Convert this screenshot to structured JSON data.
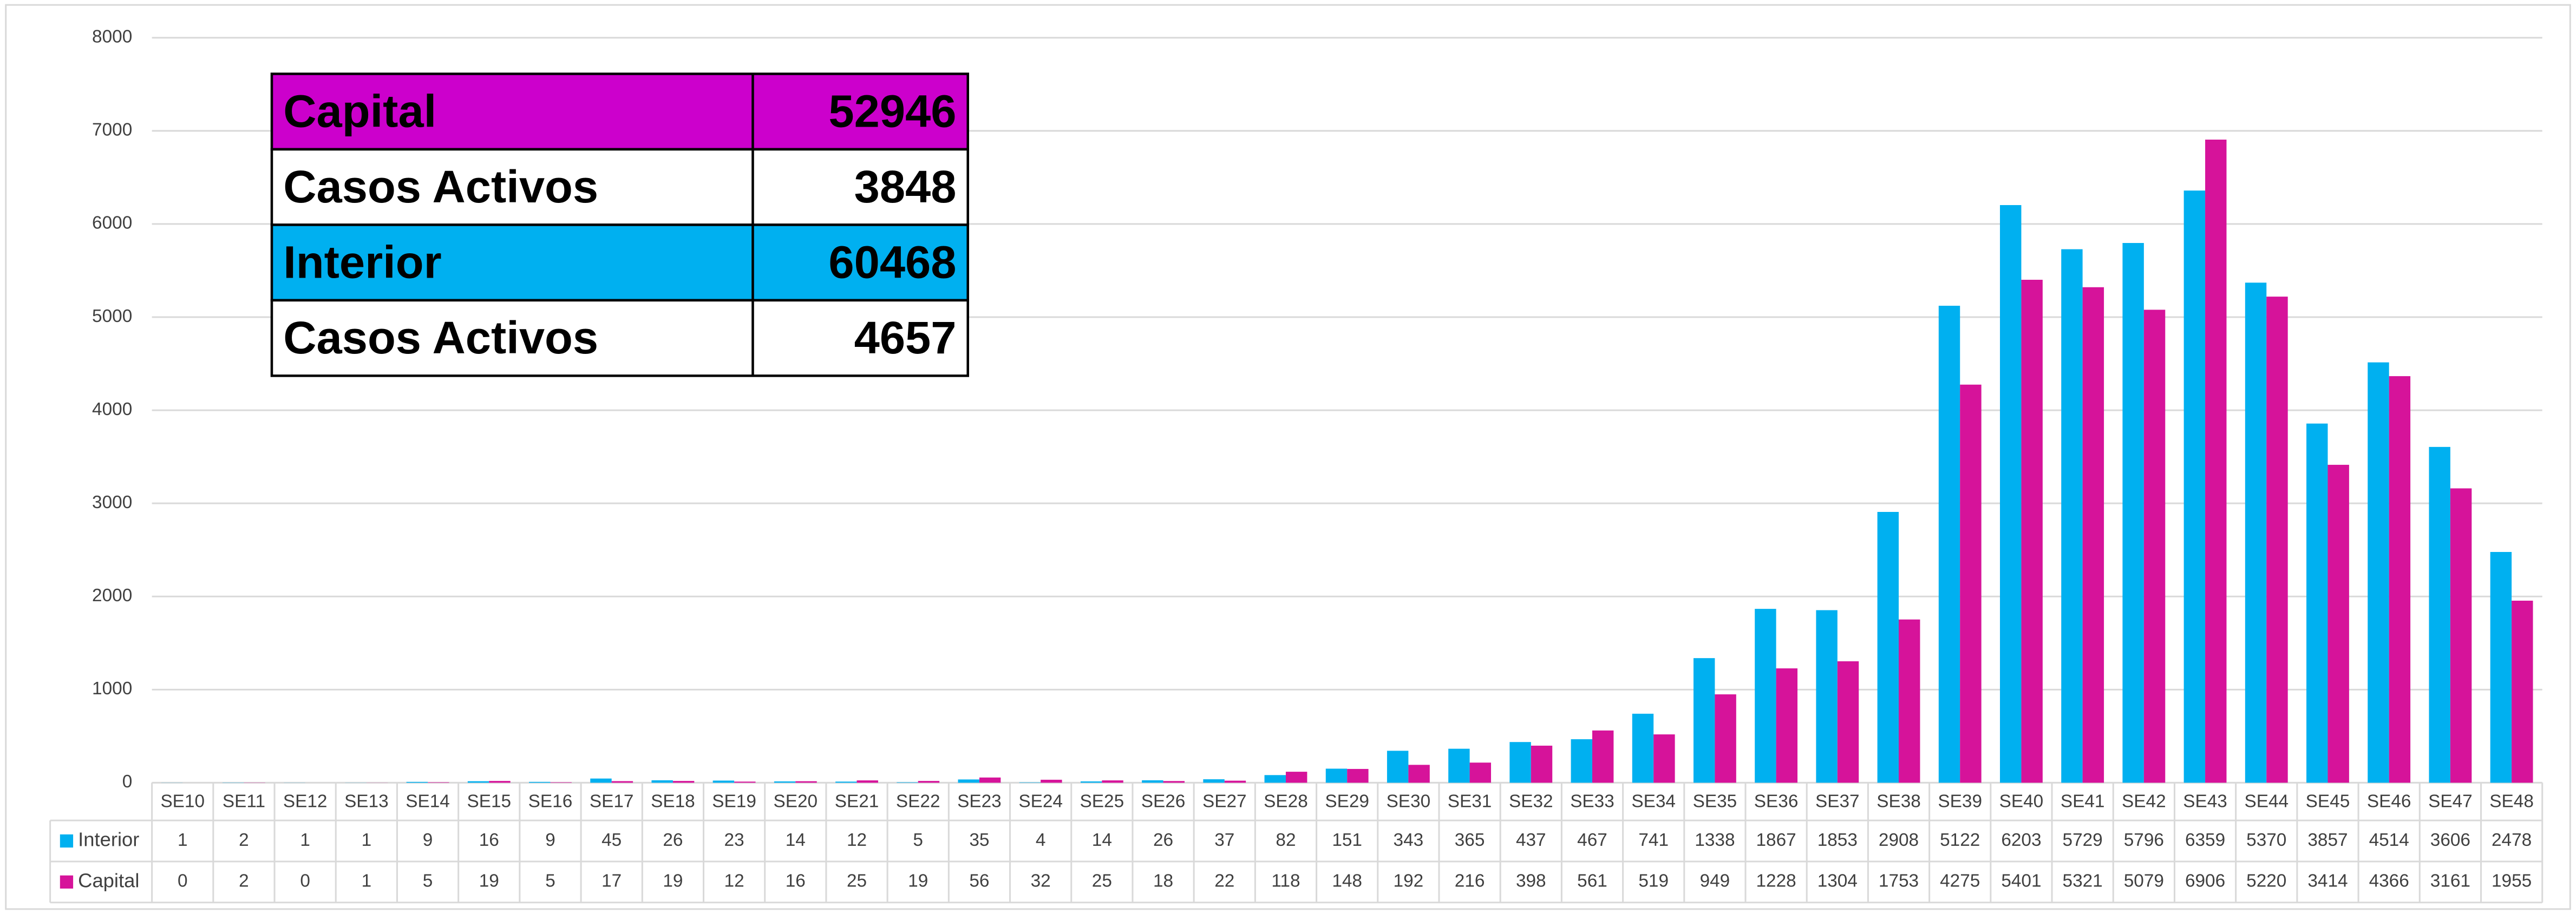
{
  "chart_data": {
    "type": "bar",
    "categories": [
      "SE10",
      "SE11",
      "SE12",
      "SE13",
      "SE14",
      "SE15",
      "SE16",
      "SE17",
      "SE18",
      "SE19",
      "SE20",
      "SE21",
      "SE22",
      "SE23",
      "SE24",
      "SE25",
      "SE26",
      "SE27",
      "SE28",
      "SE29",
      "SE30",
      "SE31",
      "SE32",
      "SE33",
      "SE34",
      "SE35",
      "SE36",
      "SE37",
      "SE38",
      "SE39",
      "SE40",
      "SE41",
      "SE42",
      "SE43",
      "SE44",
      "SE45",
      "SE46",
      "SE47",
      "SE48"
    ],
    "series": [
      {
        "name": "Interior",
        "color": "#00b0f0",
        "values": [
          1,
          2,
          1,
          1,
          9,
          16,
          9,
          45,
          26,
          23,
          14,
          12,
          5,
          35,
          4,
          14,
          26,
          37,
          82,
          151,
          343,
          365,
          437,
          467,
          741,
          1338,
          1867,
          1853,
          2908,
          5122,
          6203,
          5729,
          5796,
          6359,
          5370,
          3857,
          4514,
          3606,
          2478
        ]
      },
      {
        "name": "Capital",
        "color": "#d6139a",
        "values": [
          0,
          2,
          0,
          1,
          5,
          19,
          5,
          17,
          19,
          12,
          16,
          25,
          19,
          56,
          32,
          25,
          18,
          22,
          118,
          148,
          192,
          216,
          398,
          561,
          519,
          949,
          1228,
          1304,
          1753,
          4275,
          5401,
          5321,
          5079,
          6906,
          5220,
          3414,
          4366,
          3161,
          1955
        ]
      }
    ],
    "ylim": [
      0,
      8000
    ],
    "yticks": [
      0,
      1000,
      2000,
      3000,
      4000,
      5000,
      6000,
      7000,
      8000
    ],
    "grid": true
  },
  "summary_table": {
    "rows": [
      {
        "label": "Capital",
        "value": 52946,
        "fill": "#cc00cc"
      },
      {
        "label": "Casos Activos",
        "value": 3848,
        "fill": "#ffffff"
      },
      {
        "label": "Interior",
        "value": 60468,
        "fill": "#00b0f0"
      },
      {
        "label": "Casos Activos",
        "value": 4657,
        "fill": "#ffffff"
      }
    ]
  }
}
